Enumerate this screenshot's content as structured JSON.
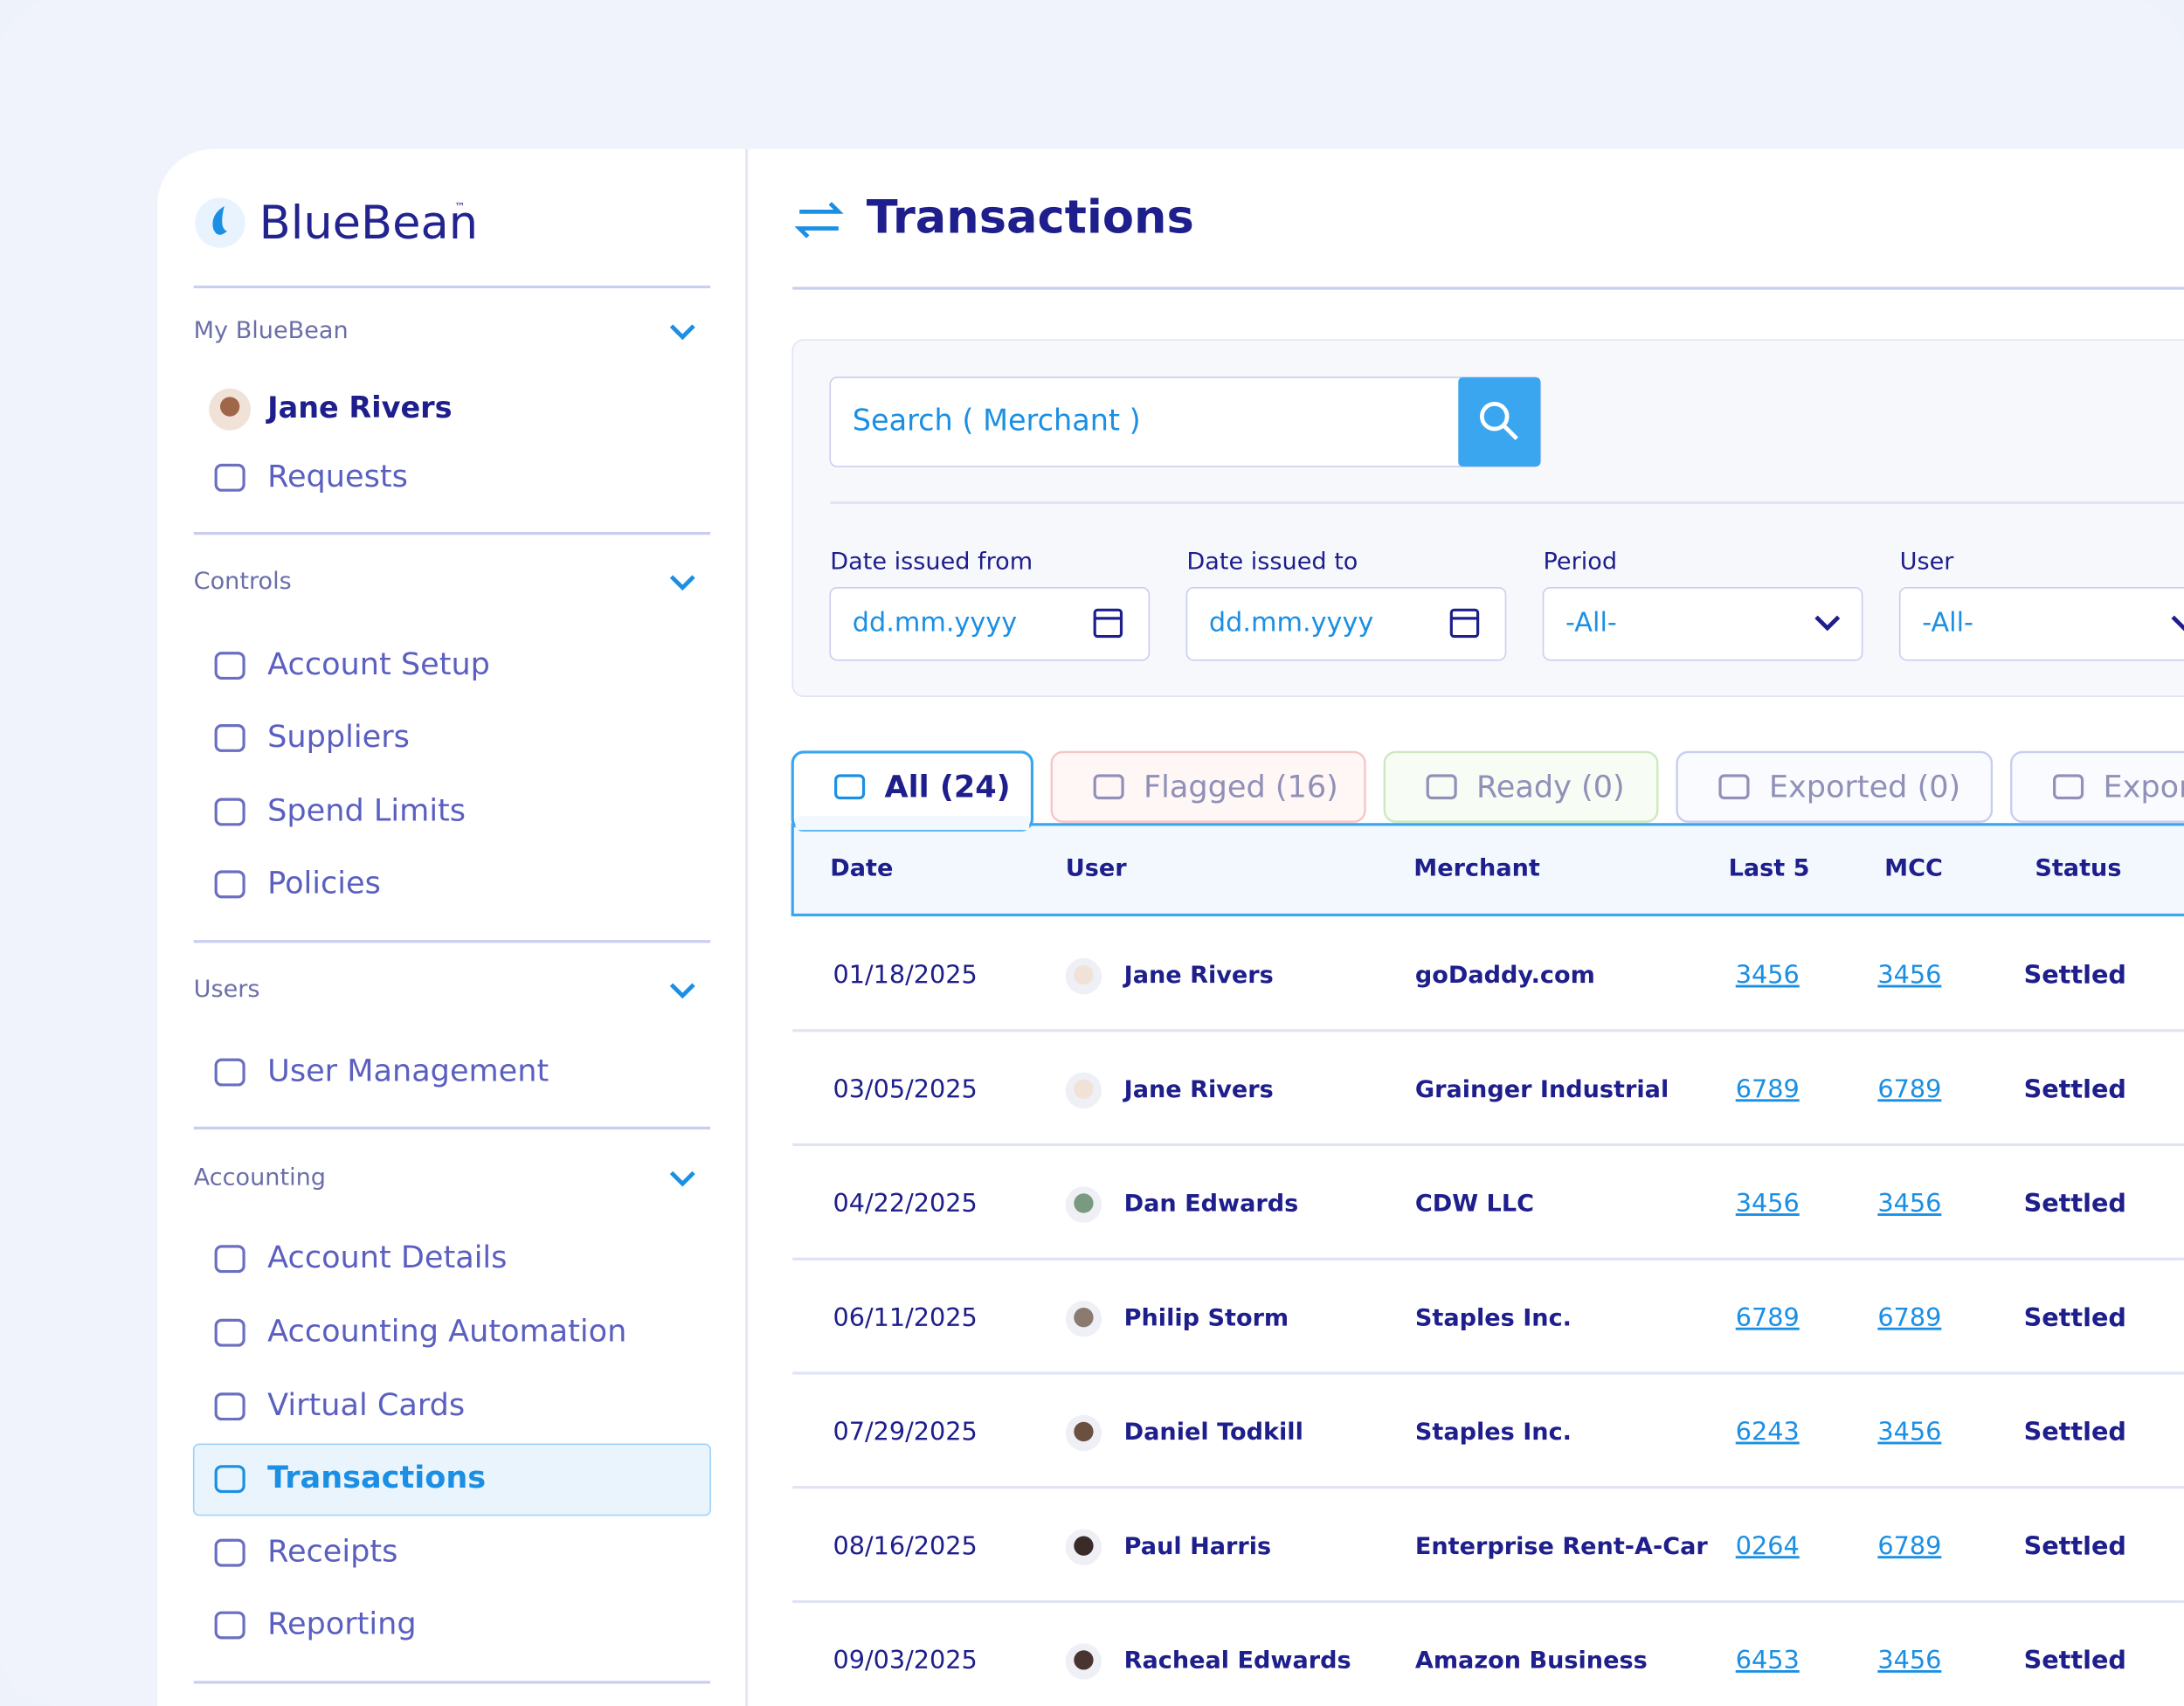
{
  "brand": "BlueBean",
  "brand_mark": "™",
  "sidebar": {
    "sections": [
      {
        "title": "My BlueBean",
        "items": [
          "Jane Rivers",
          "Requests"
        ]
      },
      {
        "title": "Controls",
        "items": [
          "Account Setup",
          "Suppliers",
          "Spend Limits",
          "Policies"
        ]
      },
      {
        "title": "Users",
        "items": [
          "User Management"
        ]
      },
      {
        "title": "Accounting",
        "items": [
          "Account Details",
          "Accounting Automation",
          "Virtual Cards",
          "Transactions",
          "Receipts",
          "Reporting"
        ]
      }
    ]
  },
  "header": {
    "title": "Transactions"
  },
  "filters": {
    "search_placeholder": "Search ( Merchant )",
    "fields": [
      {
        "label": "Date issued from",
        "placeholder": "dd.mm.yyyy"
      },
      {
        "label": "Date issued to",
        "placeholder": "dd.mm.yyyy"
      },
      {
        "label": "Period",
        "placeholder": "-All-"
      },
      {
        "label": "User",
        "placeholder": "-All-"
      }
    ]
  },
  "tabs": [
    "All (24)",
    "Flagged (16)",
    "Ready (0)",
    "Exported (0)",
    "Expor"
  ],
  "table": {
    "columns": [
      "Date",
      "User",
      "Merchant",
      "Last 5",
      "MCC",
      "Status"
    ],
    "rows": [
      [
        "01/18/2025",
        "Jane Rivers",
        "goDaddy.com",
        "3456",
        "3456",
        "Settled"
      ],
      [
        "03/05/2025",
        "Jane Rivers",
        "Grainger Industrial",
        "6789",
        "6789",
        "Settled"
      ],
      [
        "04/22/2025",
        "Dan Edwards",
        "CDW LLC",
        "3456",
        "3456",
        "Settled"
      ],
      [
        "06/11/2025",
        "Philip Storm",
        "Staples Inc.",
        "6789",
        "6789",
        "Settled"
      ],
      [
        "07/29/2025",
        "Daniel Todkill",
        "Staples Inc.",
        "6243",
        "3456",
        "Settled"
      ],
      [
        "08/16/2025",
        "Paul Harris",
        "Enterprise Rent-A-Car",
        "0264",
        "6789",
        "Settled"
      ],
      [
        "09/03/2025",
        "Racheal Edwards",
        "Amazon Business",
        "6453",
        "3456",
        "Settled"
      ]
    ]
  }
}
